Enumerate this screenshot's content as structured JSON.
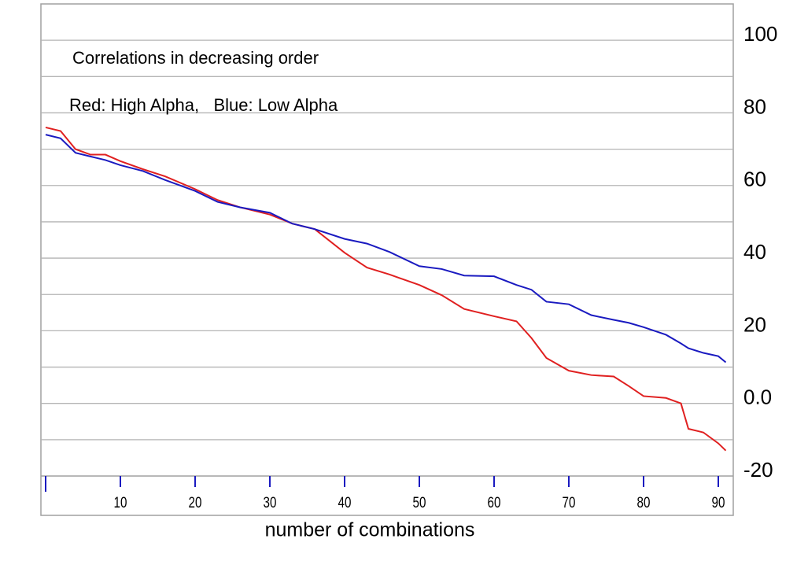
{
  "chart_data": {
    "type": "line",
    "annotations": [
      "Correlations in decreasing order",
      "Red: High Alpha,   Blue: Low Alpha"
    ],
    "xlabel": "number of combinations",
    "x": [
      0,
      2,
      4,
      6,
      8,
      10,
      13,
      16,
      20,
      23,
      26,
      30,
      33,
      36,
      40,
      43,
      46,
      50,
      53,
      56,
      60,
      63,
      65,
      67,
      70,
      73,
      76,
      78,
      80,
      83,
      85,
      86,
      88,
      90,
      91
    ],
    "series": [
      {
        "name": "High Alpha",
        "color": "#e02020",
        "values": [
          76,
          75,
          70,
          68.5,
          68.5,
          66.7,
          64.5,
          62.5,
          59,
          56,
          54,
          52,
          49.5,
          48,
          41.5,
          37.4,
          35.5,
          32.6,
          29.8,
          26,
          24,
          22.6,
          18,
          12.5,
          9,
          7.8,
          7.4,
          4.8,
          2,
          1.5,
          0,
          -7,
          -8,
          -11,
          -13
        ]
      },
      {
        "name": "Low Alpha",
        "color": "#1a1ac0",
        "values": [
          74,
          73,
          69,
          68,
          67,
          65.6,
          64,
          61.5,
          58.5,
          55.5,
          54,
          52.5,
          49.5,
          48,
          45.3,
          44,
          41.7,
          37.8,
          37,
          35.2,
          35,
          32.6,
          31.3,
          28,
          27.3,
          24.3,
          23,
          22.2,
          21,
          18.9,
          16.5,
          15.2,
          13.9,
          13,
          11.3
        ]
      }
    ],
    "xlim": [
      0,
      92
    ],
    "xticks": [
      10,
      20,
      30,
      40,
      50,
      60,
      70,
      80,
      90
    ],
    "ylim": [
      -20,
      110
    ],
    "yticks": [
      100,
      80,
      60,
      40,
      20,
      {
        "value": 0,
        "label": "0.0"
      },
      -20
    ],
    "ygrid": [
      -10,
      0,
      10,
      20,
      30,
      40,
      50,
      60,
      70,
      80,
      90,
      100
    ]
  }
}
